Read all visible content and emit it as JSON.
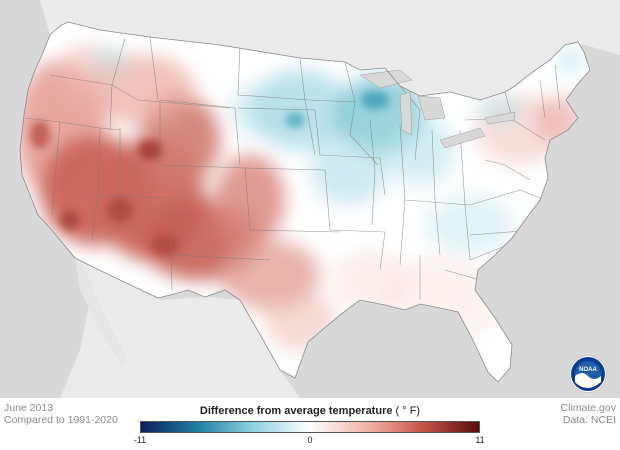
{
  "map": {
    "date": "June 2013",
    "baseline": "Compared to 1991-2020",
    "legend": {
      "title": "Difference from average temperature",
      "unit": "( ° F)",
      "min_label": "-11",
      "mid_label": "0",
      "max_label": "11",
      "min": -11,
      "max": 11,
      "colors": [
        "#0b1f5e",
        "#1e7fa0",
        "#8ed3df",
        "#ffffff",
        "#f2b6aa",
        "#c6544a",
        "#5a0c0c"
      ]
    },
    "credits": {
      "site": "Climate.gov",
      "source": "Data: NCEI"
    },
    "logo": {
      "icon": "noaa-logo",
      "text": "NOAA",
      "colors": {
        "sky": "#1f5fa8",
        "wave": "#ffffff",
        "ring": "#0a3d91"
      }
    },
    "background_color": "#d9d9d9",
    "land_color": "#ffffff"
  }
}
